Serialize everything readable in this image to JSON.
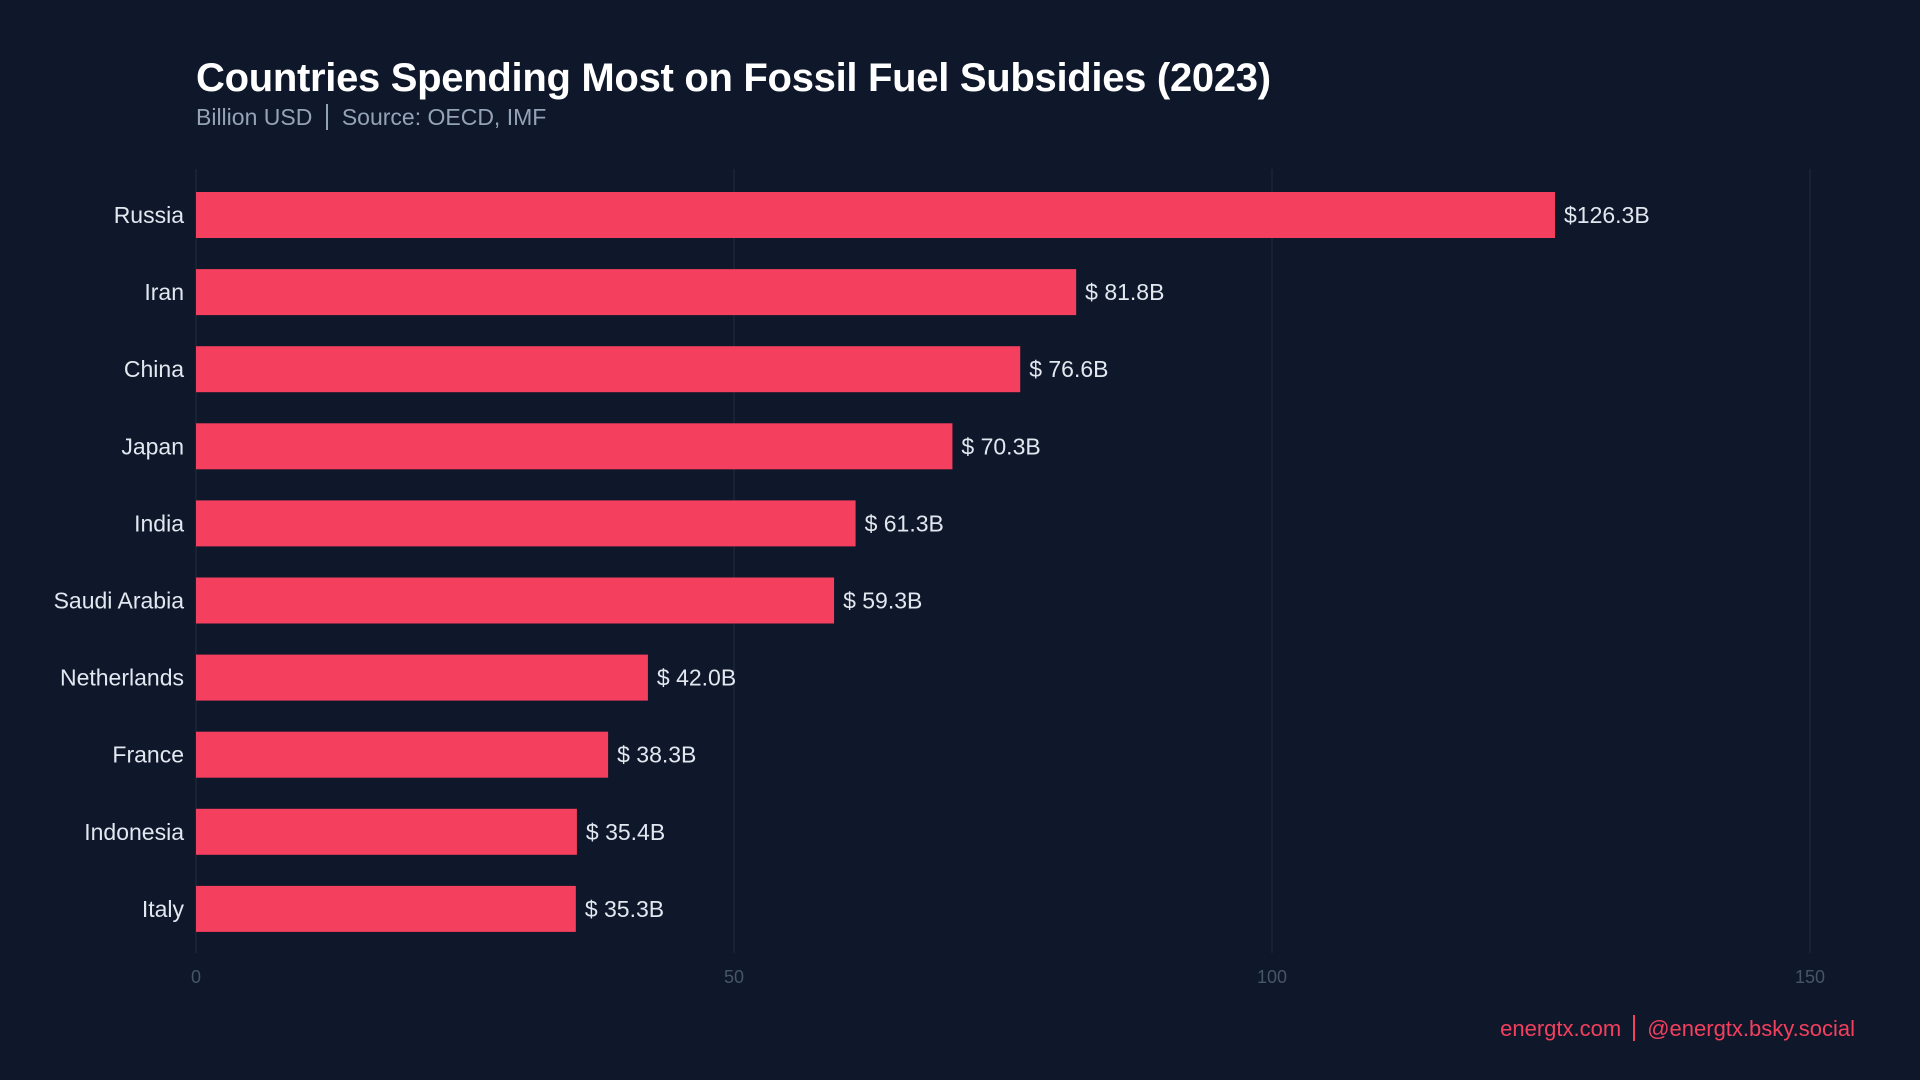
{
  "chart_data": {
    "type": "bar",
    "orientation": "horizontal",
    "title": "Countries Spending Most on Fossil Fuel Subsidies (2023)",
    "subtitle": {
      "unit": "Billion USD",
      "source": "Source: OECD, IMF"
    },
    "categories": [
      "Russia",
      "Iran",
      "China",
      "Japan",
      "India",
      "Saudi Arabia",
      "Netherlands",
      "France",
      "Indonesia",
      "Italy"
    ],
    "values": [
      126.3,
      81.8,
      76.6,
      70.3,
      61.3,
      59.3,
      42.0,
      38.3,
      35.4,
      35.3
    ],
    "data_labels": [
      "$126.3B",
      "$ 81.8B",
      "$ 76.6B",
      "$ 70.3B",
      "$ 61.3B",
      "$ 59.3B",
      "$ 42.0B",
      "$ 38.3B",
      "$ 35.4B",
      "$ 35.3B"
    ],
    "xlim": [
      0,
      150
    ],
    "xticks": [
      0,
      50,
      100,
      150
    ],
    "xlabel": "",
    "ylabel": "",
    "grid": "vertical",
    "colors": {
      "background": "#0f172a",
      "bar": "#f43f5e",
      "grid": "#1e293b",
      "tick": "#475569",
      "label": "#e2e8f0"
    }
  },
  "footer": {
    "website": "energtx.com",
    "social": "@energtx.bsky.social"
  }
}
